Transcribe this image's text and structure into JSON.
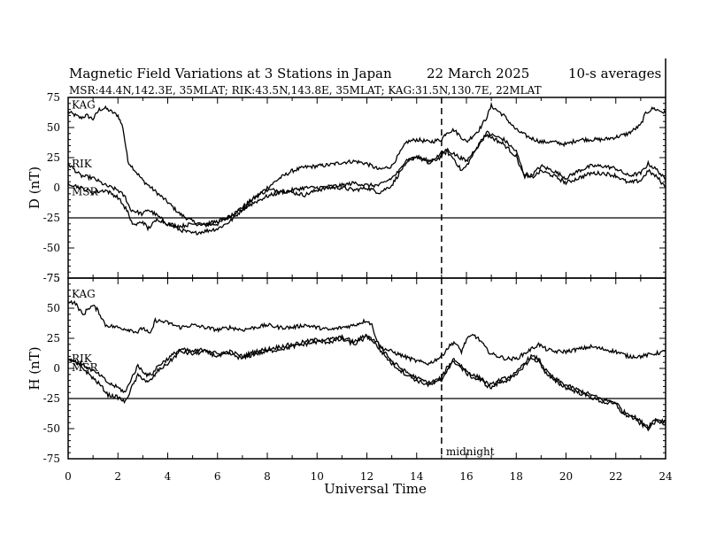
{
  "chart_data": {
    "type": "line",
    "title": "Magnetic Field Variations at 3 Stations in Japan",
    "date": "22 March   2025",
    "averaging": "10-s averages",
    "subtitle": "MSR:44.4N,142.3E, 35MLAT;  RIK:43.5N,143.8E, 35MLAT;  KAG:31.5N,130.7E, 22MLAT",
    "xlabel": "Universal Time",
    "xlim": [
      0,
      24
    ],
    "xticks": [
      "0",
      "2",
      "4",
      "6",
      "8",
      "10",
      "12",
      "14",
      "16",
      "18",
      "20",
      "22",
      "24"
    ],
    "midnight": {
      "x": 15,
      "label": "midnight"
    },
    "panels": [
      {
        "ylabel": "D (nT)",
        "ylim": [
          -75,
          75
        ],
        "yticks": [
          "75",
          "50",
          "25",
          "0",
          "-25",
          "-50",
          "-75"
        ],
        "series": [
          {
            "name": "KAG",
            "x": [
              0,
              0.5,
              0.75,
              1,
              1.25,
              1.5,
              2,
              2.2,
              2.4,
              2.7,
              3,
              3.5,
              4,
              4.5,
              5,
              5.5,
              6,
              6.5,
              7,
              7.5,
              8,
              8.5,
              9,
              9.5,
              10,
              10.5,
              11,
              11.5,
              12,
              12.5,
              13,
              13.3,
              13.6,
              14,
              14.5,
              15,
              15.2,
              15.5,
              16,
              16.5,
              16.8,
              17,
              17.5,
              18,
              18.5,
              19,
              19.5,
              20,
              20.5,
              21,
              21.5,
              22,
              22.5,
              23,
              23.2,
              23.5,
              24
            ],
            "y": [
              63,
              58,
              60,
              57,
              65,
              66,
              60,
              50,
              22,
              14,
              6,
              -3,
              -12,
              -22,
              -28,
              -31,
              -30,
              -24,
              -16,
              -8,
              0,
              8,
              14,
              17,
              18,
              19,
              21,
              22,
              20,
              15,
              18,
              28,
              38,
              40,
              38,
              40,
              46,
              48,
              38,
              48,
              58,
              68,
              60,
              48,
              42,
              38,
              38,
              36,
              40,
              40,
              40,
              42,
              45,
              52,
              62,
              66,
              62
            ]
          },
          {
            "name": "RIK",
            "x": [
              0,
              0.5,
              1,
              1.5,
              2,
              2.3,
              2.5,
              3,
              3.2,
              3.5,
              4,
              4.5,
              5,
              5.5,
              6,
              6.5,
              7,
              7.5,
              8,
              8.5,
              9,
              9.5,
              10,
              10.5,
              11,
              11.5,
              12,
              12.5,
              13,
              13.3,
              13.6,
              14,
              14.5,
              15,
              15.2,
              15.5,
              15.8,
              16,
              16.5,
              16.8,
              17,
              17.5,
              18,
              18.3,
              18.6,
              19,
              19.5,
              20,
              20.5,
              21,
              21.5,
              22,
              22.5,
              23,
              23.3,
              23.7,
              24
            ],
            "y": [
              20,
              10,
              8,
              2,
              -2,
              -8,
              -18,
              -22,
              -18,
              -22,
              -30,
              -35,
              -38,
              -36,
              -34,
              -28,
              -18,
              -8,
              -2,
              -2,
              -4,
              -6,
              -2,
              0,
              0,
              -2,
              0,
              -4,
              2,
              12,
              22,
              26,
              20,
              26,
              30,
              24,
              14,
              18,
              36,
              46,
              44,
              40,
              30,
              12,
              10,
              18,
              14,
              8,
              14,
              18,
              18,
              16,
              10,
              12,
              20,
              14,
              6
            ]
          },
          {
            "name": "MSR",
            "x": [
              0,
              1,
              1.5,
              2,
              2.4,
              2.5,
              2.7,
              3,
              3.2,
              3.4,
              3.6,
              4,
              4.5,
              5,
              5.5,
              6,
              6.5,
              7,
              7.5,
              8,
              8.5,
              9,
              9.5,
              10,
              10.5,
              11,
              11.5,
              12,
              12.5,
              13,
              13.3,
              13.6,
              14,
              14.5,
              15,
              15.2,
              15.5,
              16,
              16.5,
              16.8,
              17,
              17.5,
              18,
              18.3,
              18.6,
              19,
              19.5,
              20,
              20.5,
              21,
              21.5,
              22,
              22.5,
              23,
              23.3,
              23.7,
              24
            ],
            "y": [
              4,
              -4,
              -2,
              -8,
              -20,
              -28,
              -31,
              -28,
              -34,
              -30,
              -26,
              -30,
              -32,
              -30,
              -30,
              -28,
              -24,
              -18,
              -12,
              -7,
              -4,
              -2,
              0,
              0,
              1,
              2,
              4,
              2,
              2,
              8,
              14,
              22,
              26,
              22,
              28,
              32,
              28,
              22,
              36,
              44,
              42,
              36,
              26,
              10,
              8,
              14,
              10,
              4,
              8,
              12,
              12,
              10,
              4,
              6,
              14,
              8,
              0
            ]
          }
        ]
      },
      {
        "ylabel": "H (nT)",
        "ylim": [
          -75,
          75
        ],
        "yticks": [
          "75",
          "50",
          "25",
          "0",
          "-25",
          "-50",
          "-75"
        ],
        "series": [
          {
            "name": "KAG",
            "x": [
              0,
              0.3,
              0.6,
              0.8,
              1,
              1.2,
              1.5,
              2,
              2.5,
              2.8,
              3,
              3.3,
              3.5,
              4,
              4.5,
              5,
              5.5,
              6,
              6.5,
              7,
              7.5,
              8,
              8.5,
              9,
              9.5,
              10,
              10.5,
              11,
              11.5,
              12,
              12.2,
              12.5,
              13,
              13.5,
              14,
              14.5,
              15,
              15.2,
              15.5,
              15.8,
              16,
              16.3,
              16.6,
              16.8,
              17,
              17.3,
              17.6,
              18,
              18.3,
              18.6,
              18.9,
              19.2,
              19.5,
              20,
              20.5,
              21,
              21.5,
              22,
              22.5,
              23,
              23.5,
              24
            ],
            "y": [
              56,
              54,
              44,
              50,
              52,
              48,
              36,
              34,
              32,
              30,
              34,
              28,
              40,
              38,
              34,
              36,
              34,
              32,
              34,
              32,
              34,
              36,
              34,
              34,
              36,
              34,
              32,
              34,
              36,
              40,
              36,
              18,
              14,
              10,
              6,
              4,
              10,
              16,
              22,
              14,
              24,
              28,
              22,
              16,
              12,
              10,
              8,
              8,
              12,
              16,
              20,
              16,
              14,
              14,
              16,
              18,
              16,
              14,
              10,
              10,
              12,
              14
            ]
          },
          {
            "name": "RIK",
            "x": [
              0,
              0.5,
              1,
              1.3,
              1.6,
              2,
              2.3,
              2.5,
              2.8,
              3,
              3.2,
              3.4,
              3.6,
              4,
              4.5,
              5,
              5.5,
              6,
              6.5,
              7,
              7.5,
              8,
              8.5,
              9,
              9.5,
              10,
              10.5,
              11,
              11.5,
              12,
              12.2,
              12.5,
              13,
              13.5,
              14,
              14.5,
              15,
              15.2,
              15.5,
              15.8,
              16,
              16.3,
              16.6,
              16.8,
              17,
              17.3,
              17.6,
              18,
              18.3,
              18.6,
              18.9,
              19.2,
              19.5,
              20,
              20.5,
              21,
              21.5,
              22,
              22.3,
              22.6,
              23,
              23.3,
              23.6,
              24
            ],
            "y": [
              8,
              2,
              -8,
              -14,
              -22,
              -24,
              -28,
              -18,
              -6,
              -8,
              -12,
              -8,
              -2,
              4,
              14,
              12,
              14,
              10,
              12,
              8,
              12,
              14,
              16,
              18,
              20,
              22,
              22,
              24,
              20,
              26,
              24,
              20,
              6,
              -2,
              -8,
              -12,
              -8,
              0,
              8,
              2,
              -2,
              -6,
              -8,
              -12,
              -14,
              -10,
              -8,
              -4,
              4,
              10,
              8,
              -2,
              -8,
              -14,
              -18,
              -22,
              -26,
              -28,
              -36,
              -38,
              -44,
              -48,
              -42,
              -44
            ]
          },
          {
            "name": "MSR",
            "x": [
              0,
              0.5,
              1,
              1.3,
              1.6,
              2,
              2.3,
              2.5,
              2.8,
              3,
              3.2,
              3.4,
              3.6,
              4,
              4.5,
              5,
              5.5,
              6,
              6.5,
              7,
              7.5,
              8,
              8.5,
              9,
              9.5,
              10,
              10.5,
              11,
              11.5,
              12,
              12.2,
              12.5,
              13,
              13.5,
              14,
              14.5,
              15,
              15.2,
              15.5,
              15.8,
              16,
              16.3,
              16.6,
              16.8,
              17,
              17.3,
              17.6,
              18,
              18.3,
              18.6,
              18.9,
              19.2,
              19.5,
              20,
              20.5,
              21,
              21.5,
              22,
              22.3,
              22.6,
              23,
              23.3,
              23.6,
              24
            ],
            "y": [
              8,
              4,
              -2,
              -6,
              -12,
              -16,
              -20,
              -10,
              2,
              -2,
              -6,
              -4,
              2,
              8,
              16,
              14,
              16,
              12,
              14,
              10,
              14,
              16,
              18,
              20,
              22,
              24,
              24,
              26,
              22,
              28,
              24,
              16,
              4,
              -4,
              -10,
              -14,
              -10,
              -2,
              6,
              0,
              -4,
              -8,
              -10,
              -14,
              -16,
              -12,
              -10,
              -6,
              2,
              8,
              6,
              -4,
              -10,
              -16,
              -20,
              -24,
              -28,
              -30,
              -38,
              -40,
              -46,
              -50,
              -44,
              -46
            ]
          }
        ]
      }
    ],
    "grid": false
  },
  "colors": {
    "line": "#000000",
    "background": "#ffffff"
  }
}
